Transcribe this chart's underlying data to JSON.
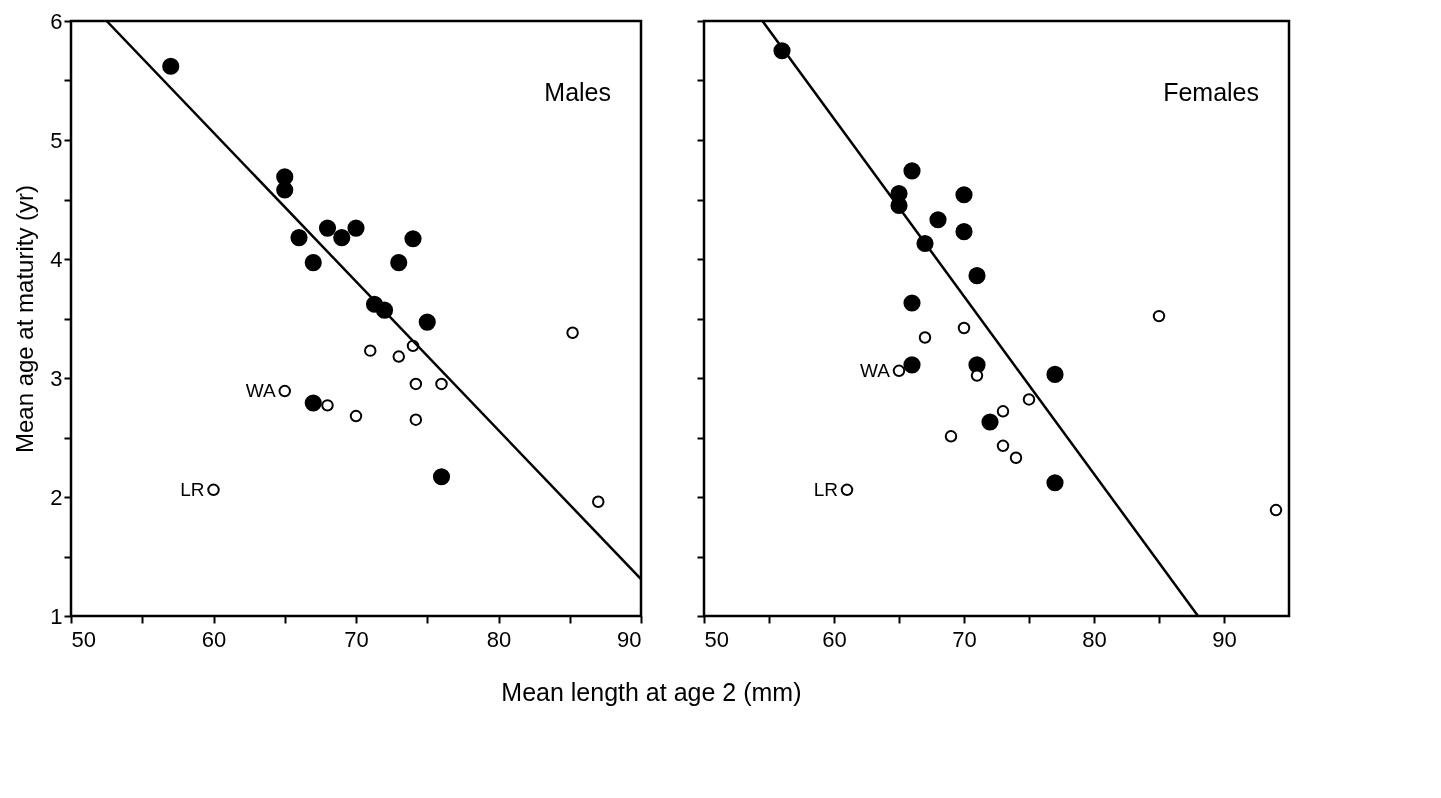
{
  "chart_data": [
    {
      "type": "scatter",
      "title": "Males",
      "xlabel": "Mean length at age 2 (mm)",
      "ylabel": "Mean age at maturity (yr)",
      "xlim": [
        50,
        90
      ],
      "ylim": [
        1,
        6
      ],
      "xticks": [
        50,
        {
          "value": 55,
          "label": null
        },
        60,
        {
          "value": 65,
          "label": null
        },
        70,
        {
          "value": 75,
          "label": null
        },
        80,
        {
          "value": 85,
          "label": null
        },
        90
      ],
      "yticks": [
        1,
        {
          "value": 1.5,
          "label": null
        },
        2,
        {
          "value": 2.5,
          "label": null
        },
        3,
        {
          "value": 3.5,
          "label": null
        },
        4,
        {
          "value": 4.5,
          "label": null
        },
        5,
        {
          "value": 5.5,
          "label": null
        },
        6
      ],
      "grid": false,
      "series": [
        {
          "marker": "circle",
          "color": "#000000",
          "x": [
            57,
            65,
            65,
            66,
            67,
            68,
            69,
            70,
            74,
            73,
            71.3,
            72,
            75,
            67,
            76
          ],
          "values": [
            5.62,
            4.69,
            4.58,
            4.18,
            3.97,
            4.26,
            4.18,
            4.26,
            4.17,
            3.97,
            3.62,
            3.57,
            3.47,
            2.79,
            2.17
          ]
        },
        {
          "marker": "circle",
          "color": "#ffffff",
          "x": [
            85.2,
            71,
            73,
            74,
            74.2,
            76,
            70,
            74.2,
            68,
            65,
            60,
            87
          ],
          "values": [
            3.38,
            3.23,
            3.18,
            3.27,
            2.95,
            2.95,
            2.68,
            2.65,
            2.77,
            2.89,
            2.06,
            1.96
          ]
        },
        {
          "type": "line",
          "color": "#000000",
          "x": [
            52.5,
            90
          ],
          "values": [
            6,
            1.31
          ]
        }
      ],
      "annotations": [
        {
          "text": "WA",
          "x": 65,
          "y": 2.89
        },
        {
          "text": "LR",
          "x": 60,
          "y": 2.06
        }
      ]
    },
    {
      "type": "scatter",
      "title": "Females",
      "xlim": [
        50,
        95
      ],
      "ylim": [
        1,
        6
      ],
      "tick_labels": "x",
      "xticks": [
        50,
        {
          "value": 55,
          "label": null
        },
        60,
        {
          "value": 65,
          "label": null
        },
        70,
        {
          "value": 75,
          "label": null
        },
        80,
        {
          "value": 85,
          "label": null
        },
        90
      ],
      "yticks": [
        1,
        {
          "value": 1.5,
          "label": null
        },
        2,
        {
          "value": 2.5,
          "label": null
        },
        3,
        {
          "value": 3.5,
          "label": null
        },
        4,
        {
          "value": 4.5,
          "label": null
        },
        5,
        {
          "value": 5.5,
          "label": null
        },
        6
      ],
      "grid": false,
      "series": [
        {
          "marker": "circle",
          "color": "#000000",
          "x": [
            56,
            65,
            65,
            66,
            68,
            70,
            70,
            67,
            71,
            66,
            66,
            71,
            77,
            72,
            77
          ],
          "values": [
            5.75,
            4.55,
            4.45,
            4.74,
            4.33,
            4.54,
            4.23,
            4.13,
            3.86,
            3.63,
            3.11,
            3.11,
            3.03,
            2.63,
            2.12
          ]
        },
        {
          "marker": "circle",
          "color": "#ffffff",
          "x": [
            85,
            70,
            67,
            65,
            71,
            75,
            73,
            69,
            73,
            74,
            61,
            94
          ],
          "values": [
            3.52,
            3.42,
            3.34,
            3.06,
            3.02,
            2.82,
            2.72,
            2.51,
            2.43,
            2.33,
            2.06,
            1.89
          ]
        },
        {
          "type": "line",
          "color": "#000000",
          "x": [
            54.5,
            88
          ],
          "values": [
            6,
            1
          ]
        }
      ],
      "annotations": [
        {
          "text": "WA",
          "x": 65,
          "y": 3.06
        },
        {
          "text": "LR",
          "x": 61,
          "y": 2.06
        }
      ]
    }
  ]
}
